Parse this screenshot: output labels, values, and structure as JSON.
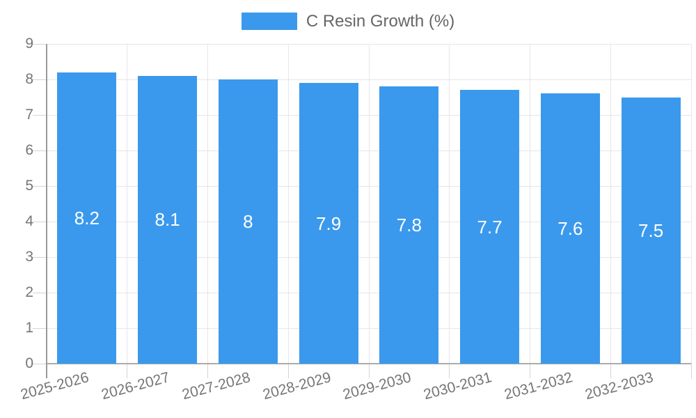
{
  "chart_data": {
    "type": "bar",
    "title": "",
    "xlabel": "",
    "ylabel": "",
    "legend": {
      "label": "C Resin Growth (%)",
      "position": "top",
      "swatch_color": "#3A99EC"
    },
    "categories": [
      "2025-2026",
      "2026-2027",
      "2027-2028",
      "2028-2029",
      "2029-2030",
      "2030-2031",
      "2031-2032",
      "2032-2033"
    ],
    "series": [
      {
        "name": "C Resin Growth (%)",
        "values": [
          8.2,
          8.1,
          8,
          7.9,
          7.8,
          7.7,
          7.6,
          7.5
        ]
      }
    ],
    "value_labels": [
      "8.2",
      "8.1",
      "8",
      "7.9",
      "7.8",
      "7.7",
      "7.6",
      "7.5"
    ],
    "y_ticks": [
      0,
      1,
      2,
      3,
      4,
      5,
      6,
      7,
      8,
      9
    ],
    "ylim": [
      0,
      9
    ],
    "grid": true,
    "x_label_rotation_deg": -15,
    "colors": {
      "bar": "#3A99EC",
      "value_label": "#FFFFFF",
      "axis_text": "#757575",
      "gridline": "#E6E6E6",
      "axis_line": "#9A9A9A",
      "baseline": "#ABABAB",
      "tick": "#D4D4D4"
    }
  }
}
